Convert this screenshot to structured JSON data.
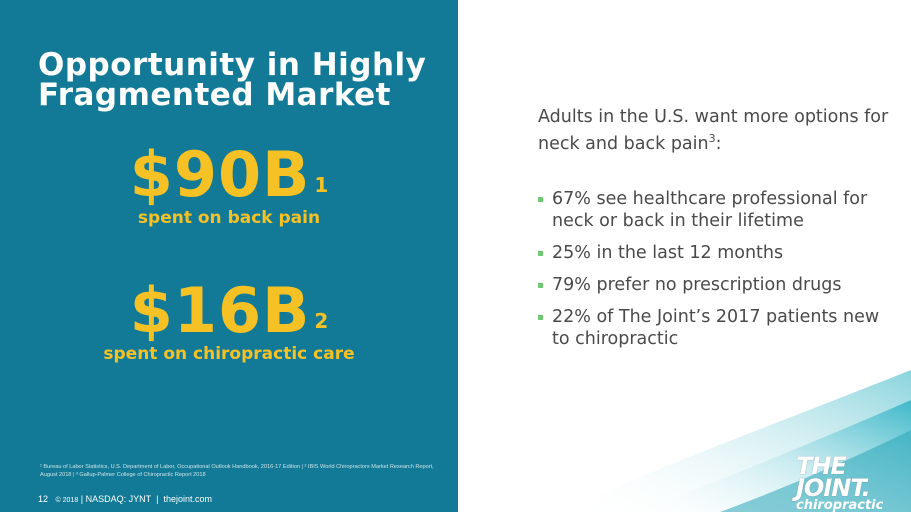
{
  "slide": {
    "title_line1": "Opportunity in Highly",
    "title_line2": "Fragmented Market"
  },
  "stats": [
    {
      "value": "$90B",
      "superscript": "1",
      "label": "spent on back pain"
    },
    {
      "value": "$16B",
      "superscript": "2",
      "label": "spent on chiropractic care"
    }
  ],
  "right": {
    "intro_text": "Adults in the U.S. want more options for neck and back pain",
    "intro_superscript": "3",
    "intro_suffix": ":",
    "bullets": [
      "67% see healthcare professional for neck or back in their lifetime",
      "25% in the last 12 months",
      "79% prefer no prescription drugs",
      "22% of The Joint’s 2017 patients new to chiropractic"
    ]
  },
  "footnote": "¹ Bureau of Labor Statistics, U.S. Department of Labor, Occupational Outlook Handbook, 2016-17 Edition | ² IBIS World Chiropractors Market Research Report, August 2018 | ³ Gallup-Palmer College of Chiropractic Report 2018",
  "footer": {
    "page_number": "12",
    "copyright": "© 2018",
    "ticker": "NASDAQ: JYNT",
    "website": "thejoint.com",
    "separator": "|"
  },
  "logo": {
    "line1": "THE JOINT.",
    "line2": "chiropractic"
  },
  "colors": {
    "panel": "#127a96",
    "accent_gold": "#f5c125",
    "bullet_green": "#6fc96f",
    "wave_teal": "#8fd4dc"
  }
}
